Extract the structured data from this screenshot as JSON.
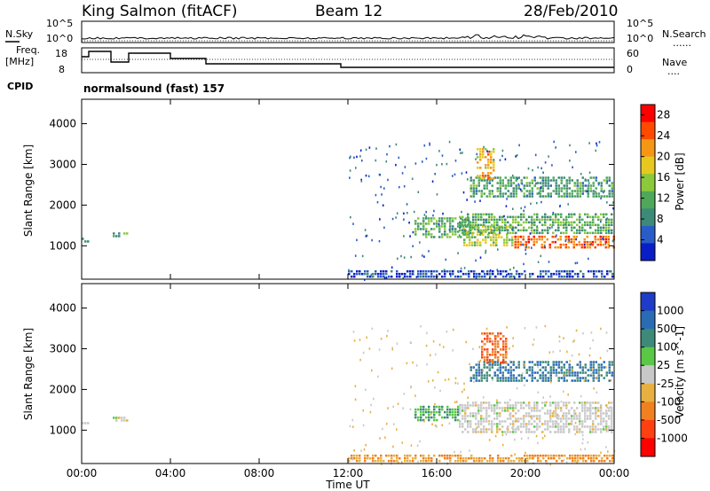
{
  "header": {
    "station": "King Salmon (fitACF)",
    "beam": "Beam 12",
    "date": "28/Feb/2010"
  },
  "strip_labels": {
    "nsky": "N.Sky",
    "nsearch": "N.Search",
    "freq_top": "Freq.",
    "freq_unit": "[MHz]",
    "nave": "Nave",
    "cpid": "CPID",
    "dots": "......",
    "dots_short": "...."
  },
  "noise_ticks": {
    "left": [
      "10^5",
      "10^0"
    ],
    "right": [
      "10^5",
      "10^0"
    ]
  },
  "freq_ticks": {
    "left": [
      "18",
      "8"
    ],
    "right": [
      "60",
      "0"
    ]
  },
  "cpid_text": "normalsound (fast) 157",
  "chart_data": [
    {
      "type": "heatmap",
      "name": "power",
      "xlabel": "Time UT",
      "ylabel": "Slant Range [km]",
      "xlim": [
        0,
        24
      ],
      "ylim": [
        180,
        4600
      ],
      "yticks": [
        "1000",
        "2000",
        "3000",
        "4000"
      ],
      "colorbar": {
        "label": "Power [dB]",
        "tick_labels": [
          "4",
          "8",
          "12",
          "16",
          "20",
          "24",
          "28"
        ],
        "range": [
          0,
          30
        ],
        "colors": [
          "#0a1ec8",
          "#2a5cc8",
          "#3d8a78",
          "#4fa85a",
          "#8cc83c",
          "#e8c81e",
          "#f59614",
          "#ff4a00",
          "#ff0000"
        ]
      },
      "regions": [
        {
          "t0": 0.0,
          "t1": 0.3,
          "r0": 1050,
          "r1": 1200,
          "value": 8
        },
        {
          "t0": 1.4,
          "t1": 2.1,
          "r0": 1180,
          "r1": 1330,
          "value": 10
        },
        {
          "t0": 12.0,
          "t1": 24.0,
          "r0": 200,
          "r1": 400,
          "value": 4
        },
        {
          "t0": 15.0,
          "t1": 17.5,
          "r0": 1200,
          "r1": 1700,
          "value": 12
        },
        {
          "t0": 17.2,
          "t1": 19.5,
          "r0": 1000,
          "r1": 1500,
          "value": 16
        },
        {
          "t0": 19.5,
          "t1": 24.0,
          "r0": 900,
          "r1": 1250,
          "value": 24
        },
        {
          "t0": 17.0,
          "t1": 24.0,
          "r0": 1250,
          "r1": 1800,
          "value": 12
        },
        {
          "t0": 17.5,
          "t1": 24.0,
          "r0": 2200,
          "r1": 2700,
          "value": 10
        },
        {
          "t0": 17.8,
          "t1": 18.6,
          "r0": 2600,
          "r1": 3400,
          "value": 20
        }
      ]
    },
    {
      "type": "heatmap",
      "name": "velocity",
      "xlabel": "Time UT",
      "ylabel": "Slant Range [km]",
      "xlim": [
        0,
        24
      ],
      "ylim": [
        180,
        4600
      ],
      "xticks": [
        "00:00",
        "04:00",
        "08:00",
        "12:00",
        "16:00",
        "20:00",
        "00:00"
      ],
      "yticks": [
        "1000",
        "2000",
        "3000",
        "4000"
      ],
      "colorbar": {
        "label": "Velocity [m s^-1]",
        "tick_labels": [
          "1000",
          "500",
          "100",
          "25",
          "-25",
          "-100",
          "-500",
          "-1000"
        ],
        "colors": [
          "#1e3cc8",
          "#2a6cb4",
          "#3d8a78",
          "#5ac846",
          "#c8c8c8",
          "#e8b040",
          "#f08020",
          "#ff4010",
          "#ff0000"
        ]
      },
      "regions": [
        {
          "t0": 0.0,
          "t1": 0.3,
          "r0": 1050,
          "r1": 1200,
          "value": 0
        },
        {
          "t0": 1.4,
          "t1": 2.1,
          "r0": 1180,
          "r1": 1330,
          "value": 0
        },
        {
          "t0": 12.0,
          "t1": 24.0,
          "r0": 200,
          "r1": 400,
          "value": -100
        },
        {
          "t0": 15.0,
          "t1": 17.0,
          "r0": 1200,
          "r1": 1600,
          "value": 100
        },
        {
          "t0": 17.0,
          "t1": 24.0,
          "r0": 900,
          "r1": 1700,
          "value": 0
        },
        {
          "t0": 17.5,
          "t1": 24.0,
          "r0": 2200,
          "r1": 2700,
          "value": 500
        },
        {
          "t0": 18.0,
          "t1": 19.2,
          "r0": 2600,
          "r1": 3400,
          "value": -500
        }
      ]
    }
  ]
}
